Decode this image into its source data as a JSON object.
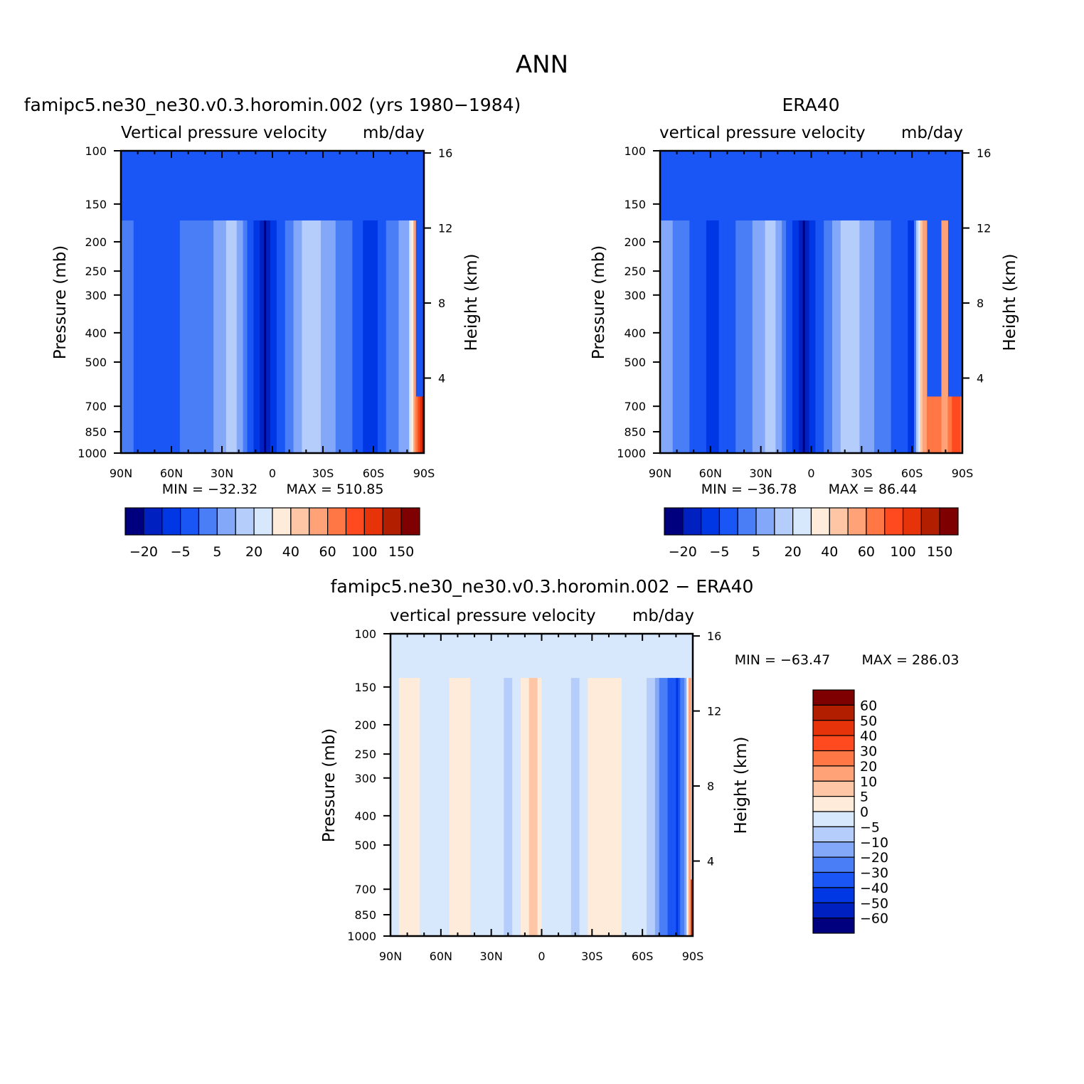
{
  "main_title": "ANN",
  "colors": {
    "model_obs_levels": [
      "#00007f",
      "#0020bf",
      "#0037e5",
      "#1a55f5",
      "#4a7ef7",
      "#84a8f9",
      "#b5cdfb",
      "#d7e8fc",
      "#ffebd9",
      "#ffc6a6",
      "#ffa278",
      "#ff7745",
      "#ff4a1f",
      "#e6330a",
      "#b21e00",
      "#7f0000"
    ],
    "diff_levels": [
      "#00007f",
      "#0020bf",
      "#0037e5",
      "#1a55f5",
      "#4a7ef7",
      "#84a8f9",
      "#b5cdfb",
      "#d7e8fc",
      "#ffebd9",
      "#ffc6a6",
      "#ffa278",
      "#ff7745",
      "#ff4a1f",
      "#e6330a",
      "#b21e00",
      "#7f0000"
    ]
  },
  "chart_data": [
    {
      "type": "heatmap",
      "title": "famipc5.ne30_ne30.v0.3.horomin.002 (yrs 1980−1984)",
      "variable": "Vertical pressure velocity",
      "units": "mb/day",
      "ylabel": "Pressure (mb)",
      "y2label": "Height (km)",
      "x_ticks": [
        "90N",
        "60N",
        "30N",
        "0",
        "30S",
        "60S",
        "90S"
      ],
      "y_ticks": [
        "100",
        "150",
        "200",
        "250",
        "300",
        "400",
        "500",
        "700",
        "850",
        "1000"
      ],
      "y2_ticks": [
        "16",
        "12",
        "8",
        "4"
      ],
      "min_label": "MIN = −32.32",
      "max_label": "MAX = 510.85",
      "colorbar_labels": [
        "−20",
        "−5",
        "5",
        "20",
        "40",
        "60",
        "100",
        "150"
      ],
      "profile": [
        {
          "lat": 90,
          "lev": 4
        },
        {
          "lat": 80,
          "lev": 3
        },
        {
          "lat": 70,
          "lev": 3
        },
        {
          "lat": 60,
          "lev": 3
        },
        {
          "lat": 50,
          "lev": 4
        },
        {
          "lat": 40,
          "lev": 4
        },
        {
          "lat": 30,
          "lev": 5
        },
        {
          "lat": 25,
          "lev": 6
        },
        {
          "lat": 20,
          "lev": 5
        },
        {
          "lat": 15,
          "lev": 3
        },
        {
          "lat": 10,
          "lev": 2
        },
        {
          "lat": 5,
          "lev": 0
        },
        {
          "lat": 0,
          "lev": 2
        },
        {
          "lat": -5,
          "lev": 3
        },
        {
          "lat": -10,
          "lev": 4
        },
        {
          "lat": -15,
          "lev": 5
        },
        {
          "lat": -20,
          "lev": 6
        },
        {
          "lat": -25,
          "lev": 6
        },
        {
          "lat": -30,
          "lev": 5
        },
        {
          "lat": -40,
          "lev": 4
        },
        {
          "lat": -50,
          "lev": 3
        },
        {
          "lat": -55,
          "lev": 2
        },
        {
          "lat": -60,
          "lev": 2
        },
        {
          "lat": -70,
          "lev": 4
        },
        {
          "lat": -80,
          "lev": 5
        },
        {
          "lat": -85,
          "lev": 11
        },
        {
          "lat": -90,
          "lev": 15
        }
      ]
    },
    {
      "type": "heatmap",
      "title": "ERA40",
      "variable": "vertical pressure velocity",
      "units": "mb/day",
      "ylabel": "Pressure (mb)",
      "y2label": "Height (km)",
      "x_ticks": [
        "90N",
        "60N",
        "30N",
        "0",
        "30S",
        "60S",
        "90S"
      ],
      "y_ticks": [
        "100",
        "150",
        "200",
        "250",
        "300",
        "400",
        "500",
        "700",
        "850",
        "1000"
      ],
      "y2_ticks": [
        "16",
        "12",
        "8",
        "4"
      ],
      "min_label": "MIN = −36.78",
      "max_label": "MAX =  86.44",
      "colorbar_labels": [
        "−20",
        "−5",
        "5",
        "20",
        "40",
        "60",
        "100",
        "150"
      ],
      "profile": [
        {
          "lat": 90,
          "lev": 5
        },
        {
          "lat": 80,
          "lev": 4
        },
        {
          "lat": 70,
          "lev": 3
        },
        {
          "lat": 60,
          "lev": 2
        },
        {
          "lat": 50,
          "lev": 3
        },
        {
          "lat": 40,
          "lev": 4
        },
        {
          "lat": 30,
          "lev": 5
        },
        {
          "lat": 25,
          "lev": 6
        },
        {
          "lat": 20,
          "lev": 5
        },
        {
          "lat": 15,
          "lev": 3
        },
        {
          "lat": 10,
          "lev": 2
        },
        {
          "lat": 5,
          "lev": 0
        },
        {
          "lat": 0,
          "lev": 2
        },
        {
          "lat": -5,
          "lev": 3
        },
        {
          "lat": -10,
          "lev": 4
        },
        {
          "lat": -15,
          "lev": 5
        },
        {
          "lat": -20,
          "lev": 6
        },
        {
          "lat": -25,
          "lev": 6
        },
        {
          "lat": -30,
          "lev": 5
        },
        {
          "lat": -40,
          "lev": 4
        },
        {
          "lat": -50,
          "lev": 3
        },
        {
          "lat": -60,
          "lev": 2
        },
        {
          "lat": -65,
          "lev": 9
        },
        {
          "lat": -70,
          "lev": 11
        },
        {
          "lat": -80,
          "lev": 10
        },
        {
          "lat": -85,
          "lev": 12
        },
        {
          "lat": -90,
          "lev": 11
        }
      ]
    },
    {
      "type": "heatmap",
      "title": "famipc5.ne30_ne30.v0.3.horomin.002 − ERA40",
      "variable": "vertical pressure velocity",
      "units": "mb/day",
      "ylabel": "Pressure (mb)",
      "y2label": "Height (km)",
      "x_ticks": [
        "90N",
        "60N",
        "30N",
        "0",
        "30S",
        "60S",
        "90S"
      ],
      "y_ticks": [
        "100",
        "150",
        "200",
        "250",
        "300",
        "400",
        "500",
        "700",
        "850",
        "1000"
      ],
      "y2_ticks": [
        "16",
        "12",
        "8",
        "4"
      ],
      "min_label": "MIN = −63.47",
      "max_label": "MAX = 286.03",
      "colorbar_labels": [
        "60",
        "50",
        "40",
        "30",
        "20",
        "10",
        "5",
        "0",
        "−5",
        "−10",
        "−20",
        "−30",
        "−40",
        "−50",
        "−60"
      ],
      "profile": [
        {
          "lat": 90,
          "lev": 7
        },
        {
          "lat": 80,
          "lev": 8
        },
        {
          "lat": 70,
          "lev": 7
        },
        {
          "lat": 60,
          "lev": 7
        },
        {
          "lat": 50,
          "lev": 8
        },
        {
          "lat": 40,
          "lev": 7
        },
        {
          "lat": 30,
          "lev": 7
        },
        {
          "lat": 20,
          "lev": 6
        },
        {
          "lat": 10,
          "lev": 8
        },
        {
          "lat": 5,
          "lev": 9
        },
        {
          "lat": 0,
          "lev": 7
        },
        {
          "lat": -10,
          "lev": 7
        },
        {
          "lat": -20,
          "lev": 6
        },
        {
          "lat": -30,
          "lev": 8
        },
        {
          "lat": -40,
          "lev": 8
        },
        {
          "lat": -50,
          "lev": 7
        },
        {
          "lat": -60,
          "lev": 7
        },
        {
          "lat": -70,
          "lev": 4
        },
        {
          "lat": -80,
          "lev": 2
        },
        {
          "lat": -85,
          "lev": 5
        },
        {
          "lat": -90,
          "lev": 15
        }
      ]
    }
  ]
}
